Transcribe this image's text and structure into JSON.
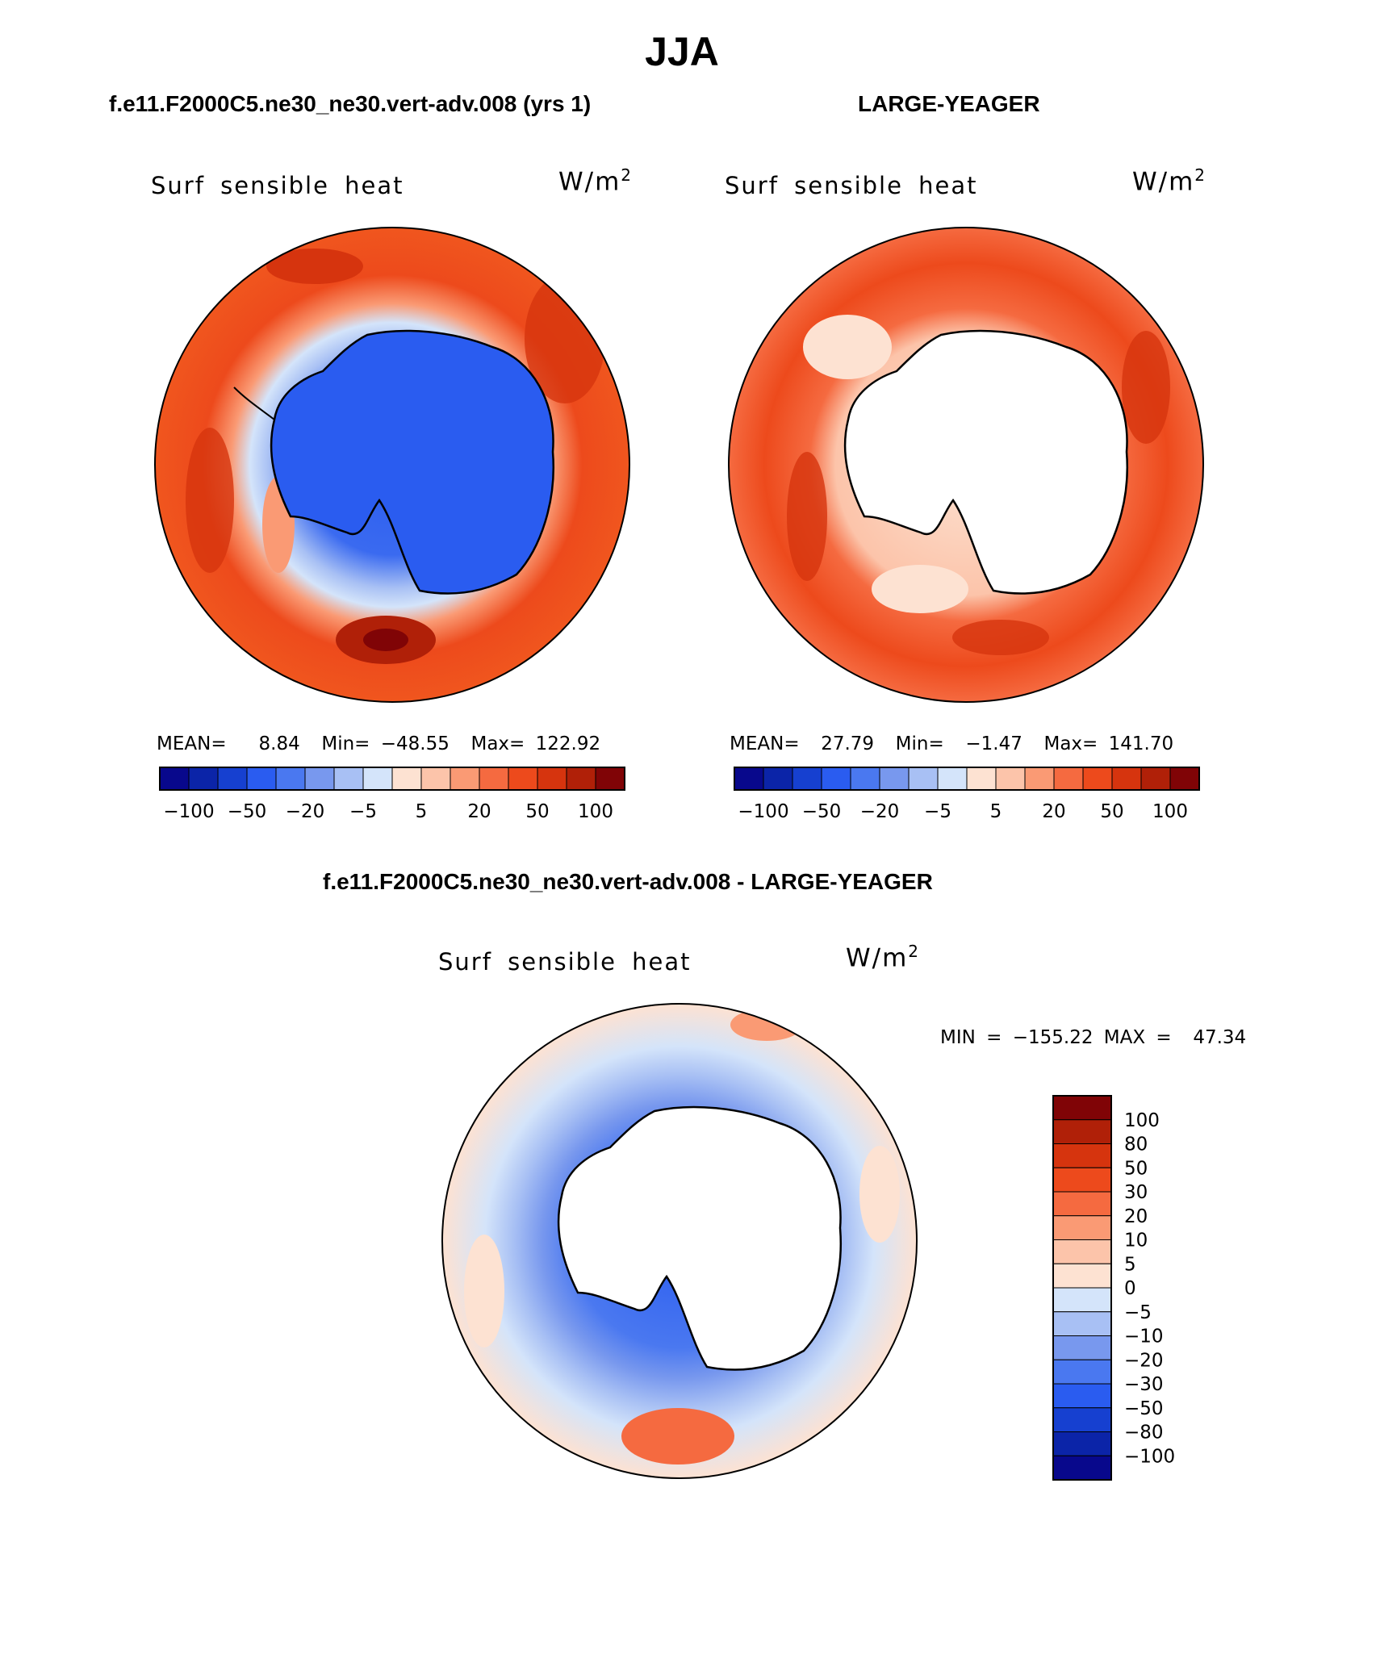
{
  "title": "JJA",
  "panels": {
    "model": {
      "case_title": "f.e11.F2000C5.ne30_ne30.vert-adv.008 (yrs 1)",
      "field": "Surf sensible heat",
      "units": "W/m",
      "units_exp": "2",
      "stats_text": "MEAN=   8.84  Min= −48.55  Max= 122.92",
      "stats": {
        "mean": 8.84,
        "min": -48.55,
        "max": 122.92
      }
    },
    "obs": {
      "case_title": "LARGE-YEAGER",
      "field": "Surf sensible heat",
      "units": "W/m",
      "units_exp": "2",
      "stats_text": "MEAN=  27.79  Min=  −1.47  Max= 141.70",
      "stats": {
        "mean": 27.79,
        "min": -1.47,
        "max": 141.7
      }
    },
    "diff": {
      "case_title": "f.e11.F2000C5.ne30_ne30.vert-adv.008 - LARGE-YEAGER",
      "field": "Surf sensible heat",
      "units": "W/m",
      "units_exp": "2",
      "stats_text": "MIN = −155.22 MAX =  47.34",
      "stats": {
        "min": -155.22,
        "max": 47.34
      }
    }
  },
  "colorbar_horizontal": {
    "colors": [
      "#08088c",
      "#0b24a8",
      "#1640d0",
      "#2a5cf0",
      "#4a78f0",
      "#7898ee",
      "#a8c0f4",
      "#d4e4fa",
      "#fde2d2",
      "#fcc4aa",
      "#fa9a74",
      "#f56a40",
      "#ed4a1c",
      "#d6340e",
      "#b02008",
      "#800406"
    ],
    "labels": [
      "−100",
      "−50",
      "−20",
      "−5",
      "5",
      "20",
      "50",
      "100"
    ]
  },
  "colorbar_vertical": {
    "colors": [
      "#800406",
      "#b02008",
      "#d6340e",
      "#ed4a1c",
      "#f56a40",
      "#fa9a74",
      "#fcc4aa",
      "#fde2d2",
      "#d4e4fa",
      "#a8c0f4",
      "#7898ee",
      "#4a78f0",
      "#2a5cf0",
      "#1640d0",
      "#0b24a8",
      "#08088c"
    ],
    "labels": [
      "100",
      "80",
      "50",
      "30",
      "20",
      "10",
      "5",
      "0",
      "−5",
      "−10",
      "−20",
      "−30",
      "−50",
      "−80",
      "−100"
    ]
  }
}
